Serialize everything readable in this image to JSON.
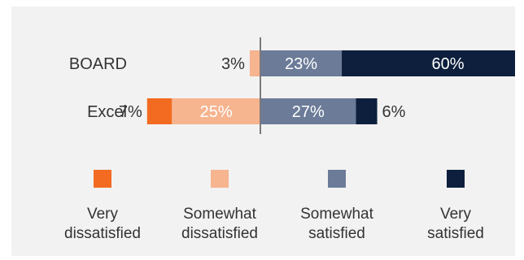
{
  "chart_data": {
    "type": "bar",
    "orientation": "horizontal",
    "stacking": "diverging",
    "categories": [
      "BOARD",
      "Excel"
    ],
    "series": [
      {
        "name": "Very dissatisfied",
        "values": [
          0,
          7
        ],
        "labels": [
          "",
          "7%"
        ],
        "color": "#f26b21",
        "side": "negative"
      },
      {
        "name": "Somewhat dissatisfied",
        "values": [
          3,
          25
        ],
        "labels": [
          "3%",
          "25%"
        ],
        "color": "#f6b48f",
        "side": "negative"
      },
      {
        "name": "Somewhat satisfied",
        "values": [
          23,
          27
        ],
        "labels": [
          "23%",
          "27%"
        ],
        "color": "#6b7b98",
        "side": "positive"
      },
      {
        "name": "Very satisfied",
        "values": [
          60,
          6
        ],
        "labels": [
          "60%",
          "6%"
        ],
        "color": "#0d1f3c",
        "side": "positive"
      }
    ],
    "legend": {
      "placement": "bottom",
      "items": [
        {
          "line1": "Very",
          "line2": "dissatisfied"
        },
        {
          "line1": "Somewhat",
          "line2": "dissatisfied"
        },
        {
          "line1": "Somewhat",
          "line2": "satisfied"
        },
        {
          "line1": "Very",
          "line2": "satisfied"
        }
      ]
    },
    "grid": false,
    "title": "",
    "xlabel": "",
    "ylabel": ""
  }
}
